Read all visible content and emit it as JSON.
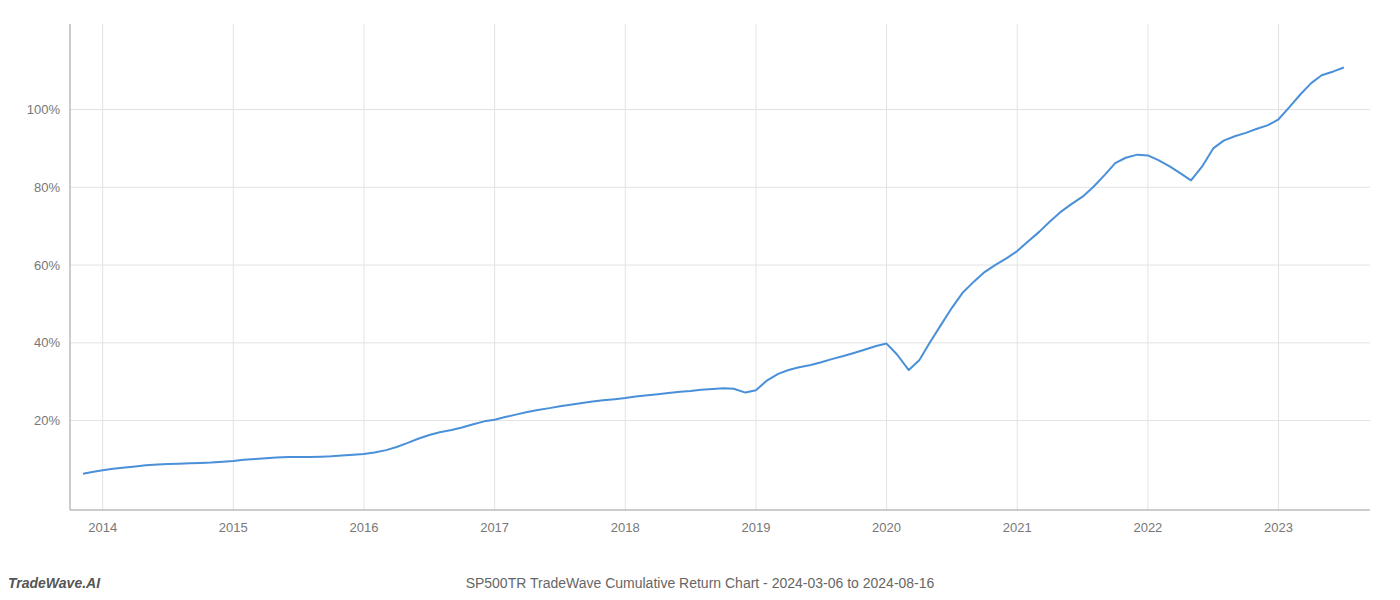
{
  "chart_data": {
    "type": "line",
    "title": "SP500TR TradeWave Cumulative Return Chart - 2024-03-06 to 2024-08-16",
    "annotations": [
      "TradeWave.AI"
    ],
    "color": "#4a90d9",
    "grid": true,
    "xlim": [
      2013.75,
      2023.7
    ],
    "ylim": [
      -0.03,
      1.22
    ],
    "xticks": [
      2014,
      2015,
      2016,
      2017,
      2018,
      2019,
      2020,
      2021,
      2022,
      2023
    ],
    "yticks": [
      {
        "value": 0.2,
        "label": "20%"
      },
      {
        "value": 0.4,
        "label": "40%"
      },
      {
        "value": 0.6,
        "label": "60%"
      },
      {
        "value": 0.8,
        "label": "80%"
      },
      {
        "value": 1.0,
        "label": "100%"
      }
    ],
    "x": [
      2013.85,
      2013.92,
      2014.0,
      2014.08,
      2014.17,
      2014.25,
      2014.33,
      2014.42,
      2014.5,
      2014.58,
      2014.67,
      2014.75,
      2014.83,
      2014.92,
      2015.0,
      2015.08,
      2015.17,
      2015.25,
      2015.33,
      2015.42,
      2015.5,
      2015.58,
      2015.67,
      2015.75,
      2015.83,
      2015.92,
      2016.0,
      2016.08,
      2016.17,
      2016.25,
      2016.33,
      2016.42,
      2016.5,
      2016.58,
      2016.67,
      2016.75,
      2016.83,
      2016.92,
      2017.0,
      2017.08,
      2017.17,
      2017.25,
      2017.33,
      2017.42,
      2017.5,
      2017.58,
      2017.67,
      2017.75,
      2017.83,
      2017.92,
      2018.0,
      2018.08,
      2018.17,
      2018.25,
      2018.33,
      2018.42,
      2018.5,
      2018.58,
      2018.67,
      2018.75,
      2018.83,
      2018.92,
      2019.0,
      2019.08,
      2019.17,
      2019.25,
      2019.33,
      2019.42,
      2019.5,
      2019.58,
      2019.67,
      2019.75,
      2019.83,
      2019.92,
      2020.0,
      2020.08,
      2020.17,
      2020.25,
      2020.33,
      2020.42,
      2020.5,
      2020.58,
      2020.67,
      2020.75,
      2020.83,
      2020.92,
      2021.0,
      2021.08,
      2021.17,
      2021.25,
      2021.33,
      2021.42,
      2021.5,
      2021.58,
      2021.67,
      2021.75,
      2021.83,
      2021.92,
      2022.0,
      2022.08,
      2022.17,
      2022.25,
      2022.33,
      2022.42,
      2022.5,
      2022.58,
      2022.67,
      2022.75,
      2022.83,
      2022.92,
      2023.0,
      2023.08,
      2023.17,
      2023.25,
      2023.33,
      2023.42,
      2023.5
    ],
    "values": [
      0.063,
      0.068,
      0.072,
      0.076,
      0.079,
      0.082,
      0.085,
      0.087,
      0.088,
      0.089,
      0.09,
      0.091,
      0.092,
      0.094,
      0.096,
      0.099,
      0.101,
      0.103,
      0.105,
      0.106,
      0.106,
      0.106,
      0.107,
      0.108,
      0.11,
      0.112,
      0.114,
      0.118,
      0.124,
      0.132,
      0.142,
      0.154,
      0.163,
      0.17,
      0.176,
      0.182,
      0.19,
      0.198,
      0.202,
      0.209,
      0.216,
      0.222,
      0.227,
      0.232,
      0.237,
      0.241,
      0.245,
      0.249,
      0.252,
      0.255,
      0.258,
      0.262,
      0.265,
      0.268,
      0.271,
      0.274,
      0.276,
      0.279,
      0.281,
      0.283,
      0.282,
      0.272,
      0.278,
      0.302,
      0.32,
      0.33,
      0.337,
      0.343,
      0.35,
      0.358,
      0.366,
      0.374,
      0.382,
      0.392,
      0.398,
      0.37,
      0.33,
      0.355,
      0.4,
      0.448,
      0.49,
      0.528,
      0.558,
      0.582,
      0.6,
      0.618,
      0.636,
      0.66,
      0.686,
      0.712,
      0.736,
      0.758,
      0.776,
      0.8,
      0.832,
      0.862,
      0.876,
      0.884,
      0.882,
      0.87,
      0.853,
      0.836,
      0.818,
      0.856,
      0.9,
      0.92,
      0.932,
      0.94,
      0.95,
      0.96,
      0.975,
      1.005,
      1.04,
      1.068,
      1.088,
      1.098,
      1.108
    ]
  }
}
